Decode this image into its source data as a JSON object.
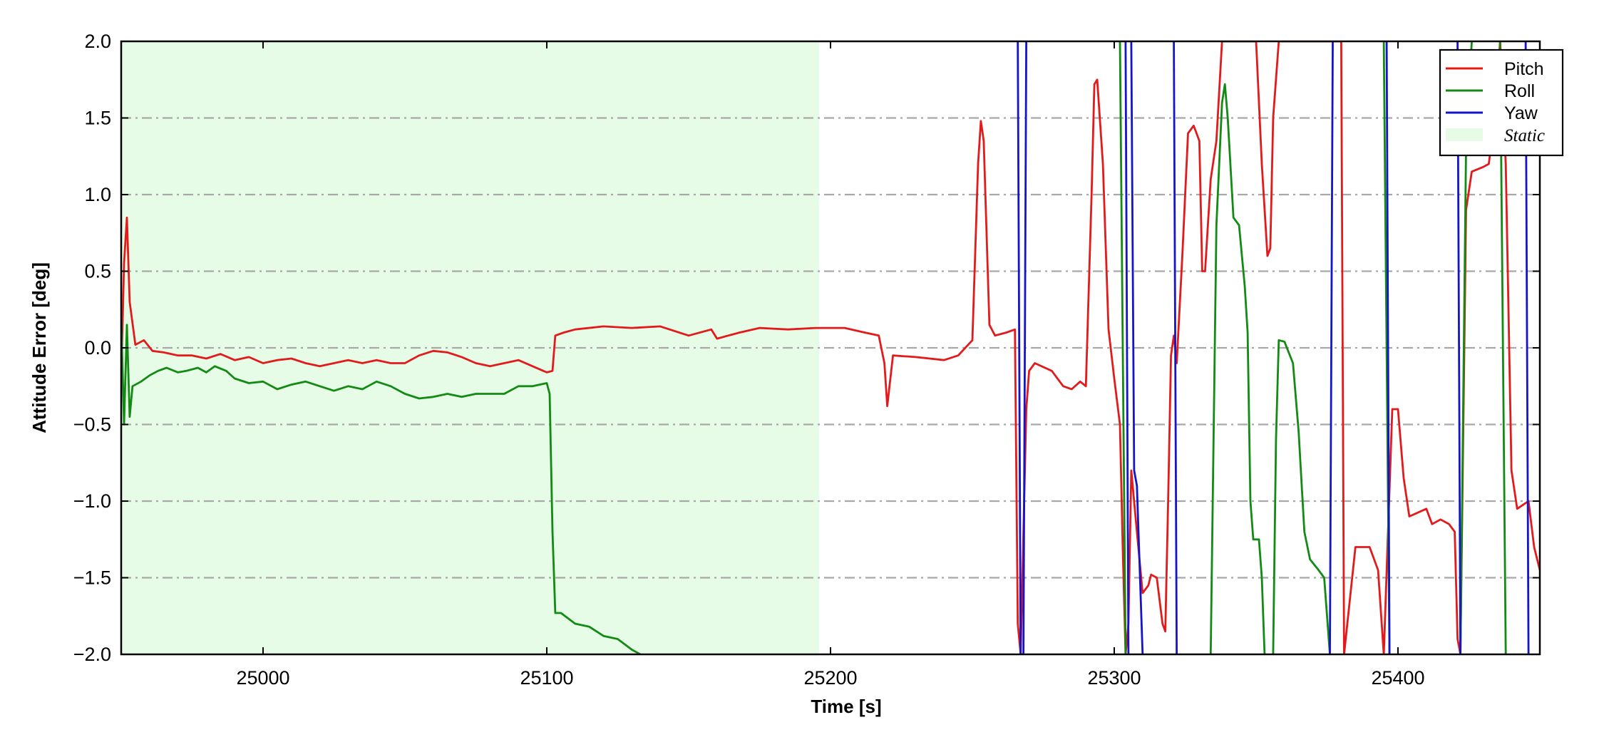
{
  "chart_data": {
    "type": "line",
    "title": "",
    "xlabel": "Time [s]",
    "ylabel": "Attitude Error [deg]",
    "xlim": [
      24950,
      25450
    ],
    "ylim": [
      -2.0,
      2.0
    ],
    "xticks": [
      25000,
      25100,
      25200,
      25300,
      25400
    ],
    "yticks": [
      2.0,
      1.5,
      1.0,
      0.5,
      0.0,
      -0.5,
      -1.0,
      -1.5,
      -2.0
    ],
    "ytick_labels": [
      "2.0",
      "1.5",
      "1.0",
      "0.5",
      "0.0",
      "−0.5",
      "−1.0",
      "−1.5",
      "−2.0"
    ],
    "grid": "horizontal dash-dot",
    "legend_position": "top-right",
    "shaded_region": {
      "label": "Static",
      "x": [
        24950,
        25196
      ],
      "color": "#e6fce6"
    },
    "series": [
      {
        "name": "Pitch",
        "color": "#e31a1c",
        "points": [
          [
            24950,
            -0.2
          ],
          [
            24951,
            0.55
          ],
          [
            24952,
            0.85
          ],
          [
            24953,
            0.3
          ],
          [
            24955,
            0.02
          ],
          [
            24958,
            0.05
          ],
          [
            24961,
            -0.02
          ],
          [
            24965,
            -0.03
          ],
          [
            24970,
            -0.05
          ],
          [
            24975,
            -0.05
          ],
          [
            24980,
            -0.07
          ],
          [
            24985,
            -0.04
          ],
          [
            24990,
            -0.08
          ],
          [
            24995,
            -0.06
          ],
          [
            25000,
            -0.1
          ],
          [
            25005,
            -0.08
          ],
          [
            25010,
            -0.07
          ],
          [
            25015,
            -0.1
          ],
          [
            25020,
            -0.12
          ],
          [
            25025,
            -0.1
          ],
          [
            25030,
            -0.08
          ],
          [
            25035,
            -0.1
          ],
          [
            25040,
            -0.08
          ],
          [
            25045,
            -0.1
          ],
          [
            25050,
            -0.1
          ],
          [
            25055,
            -0.05
          ],
          [
            25060,
            -0.02
          ],
          [
            25065,
            -0.03
          ],
          [
            25070,
            -0.06
          ],
          [
            25075,
            -0.1
          ],
          [
            25080,
            -0.12
          ],
          [
            25085,
            -0.1
          ],
          [
            25090,
            -0.08
          ],
          [
            25095,
            -0.12
          ],
          [
            25100,
            -0.16
          ],
          [
            25102,
            -0.15
          ],
          [
            25103,
            0.08
          ],
          [
            25106,
            0.1
          ],
          [
            25110,
            0.12
          ],
          [
            25120,
            0.14
          ],
          [
            25130,
            0.13
          ],
          [
            25140,
            0.14
          ],
          [
            25150,
            0.08
          ],
          [
            25158,
            0.12
          ],
          [
            25160,
            0.06
          ],
          [
            25168,
            0.1
          ],
          [
            25175,
            0.13
          ],
          [
            25185,
            0.12
          ],
          [
            25195,
            0.13
          ],
          [
            25205,
            0.13
          ],
          [
            25212,
            0.1
          ],
          [
            25217,
            0.08
          ],
          [
            25219,
            -0.1
          ],
          [
            25220,
            -0.38
          ],
          [
            25222,
            -0.05
          ],
          [
            25230,
            -0.06
          ],
          [
            25240,
            -0.08
          ],
          [
            25245,
            -0.05
          ],
          [
            25250,
            0.05
          ],
          [
            25252,
            1.2
          ],
          [
            25253,
            1.48
          ],
          [
            25254,
            1.35
          ],
          [
            25256,
            0.15
          ],
          [
            25258,
            0.08
          ],
          [
            25262,
            0.1
          ],
          [
            25265,
            0.12
          ],
          [
            25266,
            -1.8
          ],
          [
            25267,
            -2.0
          ],
          [
            25269,
            -0.4
          ],
          [
            25270,
            -0.15
          ],
          [
            25272,
            -0.1
          ],
          [
            25278,
            -0.15
          ],
          [
            25282,
            -0.25
          ],
          [
            25285,
            -0.27
          ],
          [
            25288,
            -0.22
          ],
          [
            25290,
            -0.25
          ],
          [
            25292,
            1.0
          ],
          [
            25293,
            1.72
          ],
          [
            25294,
            1.75
          ],
          [
            25296,
            1.2
          ],
          [
            25298,
            0.12
          ],
          [
            25300,
            -0.2
          ],
          [
            25302,
            -0.5
          ],
          [
            25303,
            -1.3
          ],
          [
            25304,
            -2.0
          ],
          [
            25305,
            -1.8
          ],
          [
            25306,
            -0.8
          ],
          [
            25308,
            -1.2
          ],
          [
            25310,
            -1.6
          ],
          [
            25312,
            -1.55
          ],
          [
            25313,
            -1.48
          ],
          [
            25315,
            -1.5
          ],
          [
            25317,
            -1.8
          ],
          [
            25318,
            -1.85
          ],
          [
            25319,
            -1.0
          ],
          [
            25320,
            -0.05
          ],
          [
            25321,
            0.08
          ],
          [
            25322,
            -0.1
          ],
          [
            25324,
            0.6
          ],
          [
            25326,
            1.4
          ],
          [
            25328,
            1.45
          ],
          [
            25330,
            1.35
          ],
          [
            25331,
            0.5
          ],
          [
            25332,
            0.5
          ],
          [
            25334,
            1.1
          ],
          [
            25336,
            1.35
          ],
          [
            25338,
            2.0
          ],
          [
            25350,
            2.0
          ],
          [
            25352,
            1.2
          ],
          [
            25354,
            0.6
          ],
          [
            25355,
            0.65
          ],
          [
            25356,
            1.5
          ],
          [
            25358,
            2.0
          ],
          [
            25380,
            2.0
          ],
          [
            25381,
            -2.0
          ],
          [
            25385,
            -1.3
          ],
          [
            25390,
            -1.3
          ],
          [
            25393,
            -1.45
          ],
          [
            25395,
            -2.0
          ],
          [
            25398,
            -0.4
          ],
          [
            25400,
            -0.4
          ],
          [
            25402,
            -0.85
          ],
          [
            25404,
            -1.1
          ],
          [
            25410,
            -1.05
          ],
          [
            25412,
            -1.15
          ],
          [
            25415,
            -1.12
          ],
          [
            25418,
            -1.15
          ],
          [
            25420,
            -1.2
          ],
          [
            25421,
            -1.9
          ],
          [
            25422,
            -2.0
          ],
          [
            25424,
            0.9
          ],
          [
            25426,
            1.15
          ],
          [
            25430,
            1.18
          ],
          [
            25432,
            1.2
          ],
          [
            25434,
            1.5
          ],
          [
            25436,
            2.0
          ],
          [
            25438,
            1.2
          ],
          [
            25440,
            -0.8
          ],
          [
            25442,
            -1.05
          ],
          [
            25446,
            -1.0
          ],
          [
            25448,
            -1.3
          ],
          [
            25450,
            -1.45
          ]
        ]
      },
      {
        "name": "Roll",
        "color": "#138a13",
        "points": [
          [
            24950,
            0.2
          ],
          [
            24951,
            -0.5
          ],
          [
            24952,
            0.15
          ],
          [
            24953,
            -0.45
          ],
          [
            24954,
            -0.25
          ],
          [
            24957,
            -0.22
          ],
          [
            24960,
            -0.18
          ],
          [
            24963,
            -0.15
          ],
          [
            24966,
            -0.13
          ],
          [
            24970,
            -0.16
          ],
          [
            24973,
            -0.15
          ],
          [
            24977,
            -0.13
          ],
          [
            24980,
            -0.16
          ],
          [
            24983,
            -0.12
          ],
          [
            24987,
            -0.15
          ],
          [
            24990,
            -0.2
          ],
          [
            24995,
            -0.23
          ],
          [
            25000,
            -0.22
          ],
          [
            25005,
            -0.27
          ],
          [
            25010,
            -0.24
          ],
          [
            25015,
            -0.22
          ],
          [
            25020,
            -0.25
          ],
          [
            25025,
            -0.28
          ],
          [
            25030,
            -0.25
          ],
          [
            25035,
            -0.27
          ],
          [
            25040,
            -0.22
          ],
          [
            25045,
            -0.25
          ],
          [
            25050,
            -0.3
          ],
          [
            25055,
            -0.33
          ],
          [
            25060,
            -0.32
          ],
          [
            25065,
            -0.3
          ],
          [
            25070,
            -0.32
          ],
          [
            25075,
            -0.3
          ],
          [
            25080,
            -0.3
          ],
          [
            25085,
            -0.3
          ],
          [
            25090,
            -0.25
          ],
          [
            25095,
            -0.25
          ],
          [
            25100,
            -0.23
          ],
          [
            25101,
            -0.3
          ],
          [
            25102,
            -1.2
          ],
          [
            25103,
            -1.73
          ],
          [
            25105,
            -1.73
          ],
          [
            25110,
            -1.8
          ],
          [
            25115,
            -1.82
          ],
          [
            25120,
            -1.88
          ],
          [
            25125,
            -1.9
          ],
          [
            25130,
            -1.97
          ],
          [
            25133,
            -2.0
          ]
        ]
      },
      {
        "name": "Yaw",
        "color": "#1515c8",
        "points": [
          [
            25266,
            2.0
          ],
          [
            25267,
            -2.0
          ],
          [
            25268,
            -2.0
          ],
          [
            25269,
            2.0
          ]
        ]
      }
    ],
    "line_segments": [
      {
        "series": "Roll",
        "points": [
          [
            25302,
            2.0
          ],
          [
            25304,
            -2.0
          ]
        ]
      },
      {
        "series": "Roll",
        "points": [
          [
            25334,
            -2.0
          ],
          [
            25336,
            0.8
          ],
          [
            25338,
            1.6
          ],
          [
            25339,
            1.72
          ],
          [
            25340,
            1.5
          ],
          [
            25342,
            0.85
          ],
          [
            25344,
            0.8
          ],
          [
            25346,
            0.4
          ],
          [
            25347,
            0.1
          ],
          [
            25348,
            -1.0
          ],
          [
            25349,
            -1.25
          ],
          [
            25351,
            -1.25
          ],
          [
            25352,
            -1.5
          ],
          [
            25353,
            -2.0
          ]
        ]
      },
      {
        "series": "Roll",
        "points": [
          [
            25356,
            -2.0
          ],
          [
            25357,
            -0.6
          ],
          [
            25358,
            0.05
          ],
          [
            25360,
            0.04
          ],
          [
            25363,
            -0.1
          ],
          [
            25365,
            -0.55
          ],
          [
            25367,
            -1.2
          ],
          [
            25369,
            -1.38
          ],
          [
            25372,
            -1.45
          ],
          [
            25374,
            -1.5
          ],
          [
            25376,
            -2.0
          ]
        ]
      },
      {
        "series": "Roll",
        "points": [
          [
            25395,
            2.0
          ],
          [
            25397,
            -2.0
          ]
        ]
      },
      {
        "series": "Roll",
        "points": [
          [
            25422,
            -2.0
          ],
          [
            25424,
            1.3
          ],
          [
            25426,
            2.0
          ]
        ]
      },
      {
        "series": "Roll",
        "points": [
          [
            25436,
            2.0
          ],
          [
            25438,
            -2.0
          ]
        ]
      },
      {
        "series": "Yaw",
        "points": [
          [
            25304,
            2.0
          ],
          [
            25305,
            -2.0
          ]
        ]
      },
      {
        "series": "Yaw",
        "points": [
          [
            25306,
            2.0
          ],
          [
            25307,
            -0.8
          ],
          [
            25308,
            -0.9
          ],
          [
            25310,
            -2.0
          ]
        ]
      },
      {
        "series": "Yaw",
        "points": [
          [
            25321,
            2.0
          ],
          [
            25322,
            -2.0
          ]
        ]
      },
      {
        "series": "Yaw",
        "points": [
          [
            25376,
            -2.0
          ],
          [
            25377,
            2.0
          ]
        ]
      },
      {
        "series": "Yaw",
        "points": [
          [
            25396,
            2.0
          ],
          [
            25397,
            -2.0
          ]
        ]
      },
      {
        "series": "Yaw",
        "points": [
          [
            25421,
            2.0
          ],
          [
            25422,
            -2.0
          ]
        ]
      },
      {
        "series": "Yaw",
        "points": [
          [
            25445,
            2.0
          ],
          [
            25446,
            -2.0
          ]
        ]
      }
    ]
  }
}
